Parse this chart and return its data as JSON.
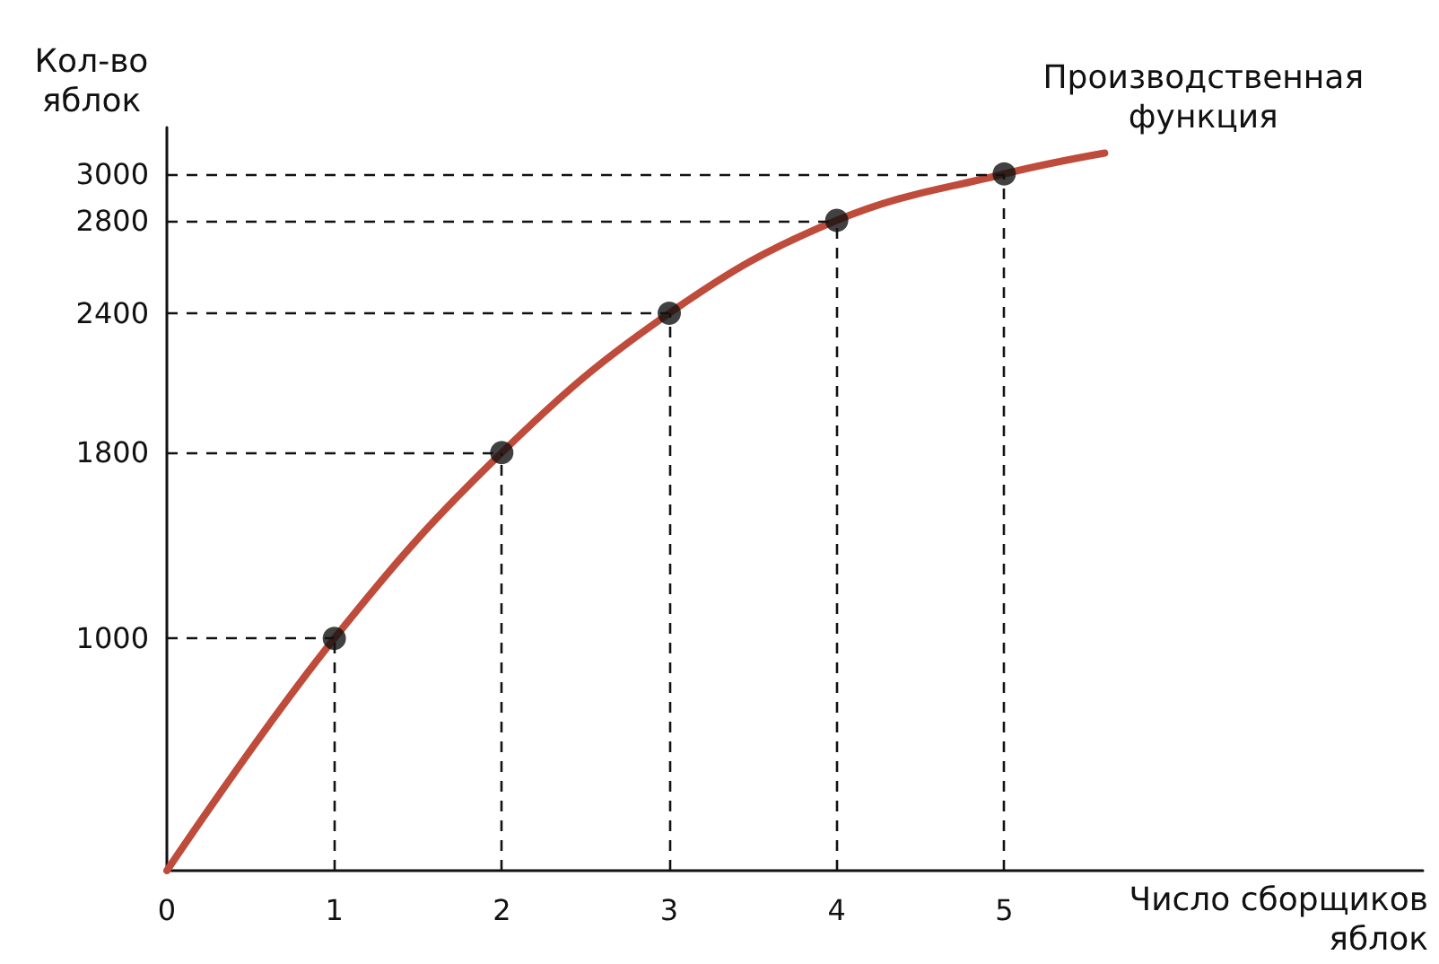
{
  "chart_data": {
    "type": "line",
    "xlabel": "Число сборщиков яблок",
    "ylabel": "Кол-во яблок",
    "xlim": [
      0,
      7.5
    ],
    "ylim": [
      0,
      3200
    ],
    "xticks": [
      0,
      1,
      2,
      3,
      4,
      5
    ],
    "yticks": [
      1000,
      1800,
      2400,
      2800,
      3000
    ],
    "grid": false,
    "legend": false,
    "series": [
      {
        "type": "line",
        "name": "Производственная функция",
        "color": "#bf4b3b",
        "marker": "none",
        "x": [
          0,
          1,
          2,
          3,
          4,
          5,
          5.6
        ],
        "values": [
          0,
          1000,
          1800,
          2400,
          2800,
          3000,
          3090
        ]
      },
      {
        "type": "scatter",
        "color": "#111111",
        "marker": "circle",
        "x": [
          1,
          2,
          3,
          4,
          5
        ],
        "values": [
          1000,
          1800,
          2400,
          2800,
          3000
        ]
      }
    ],
    "ref_lines": [
      {
        "axis": "y",
        "value": 1000,
        "line_style": "dashed",
        "color": "#111111"
      },
      {
        "axis": "y",
        "value": 1800,
        "line_style": "dashed",
        "color": "#111111"
      },
      {
        "axis": "y",
        "value": 2400,
        "line_style": "dashed",
        "color": "#111111"
      },
      {
        "axis": "y",
        "value": 2800,
        "line_style": "dashed",
        "color": "#111111"
      },
      {
        "axis": "y",
        "value": 3000,
        "line_style": "dashed",
        "color": "#111111"
      },
      {
        "axis": "x",
        "value": 1,
        "line_style": "dashed",
        "color": "#111111"
      },
      {
        "axis": "x",
        "value": 2,
        "line_style": "dashed",
        "color": "#111111"
      },
      {
        "axis": "x",
        "value": 3,
        "line_style": "dashed",
        "color": "#111111"
      },
      {
        "axis": "x",
        "value": 4,
        "line_style": "dashed",
        "color": "#111111"
      },
      {
        "axis": "x",
        "value": 5,
        "line_style": "dashed",
        "color": "#111111"
      }
    ]
  }
}
